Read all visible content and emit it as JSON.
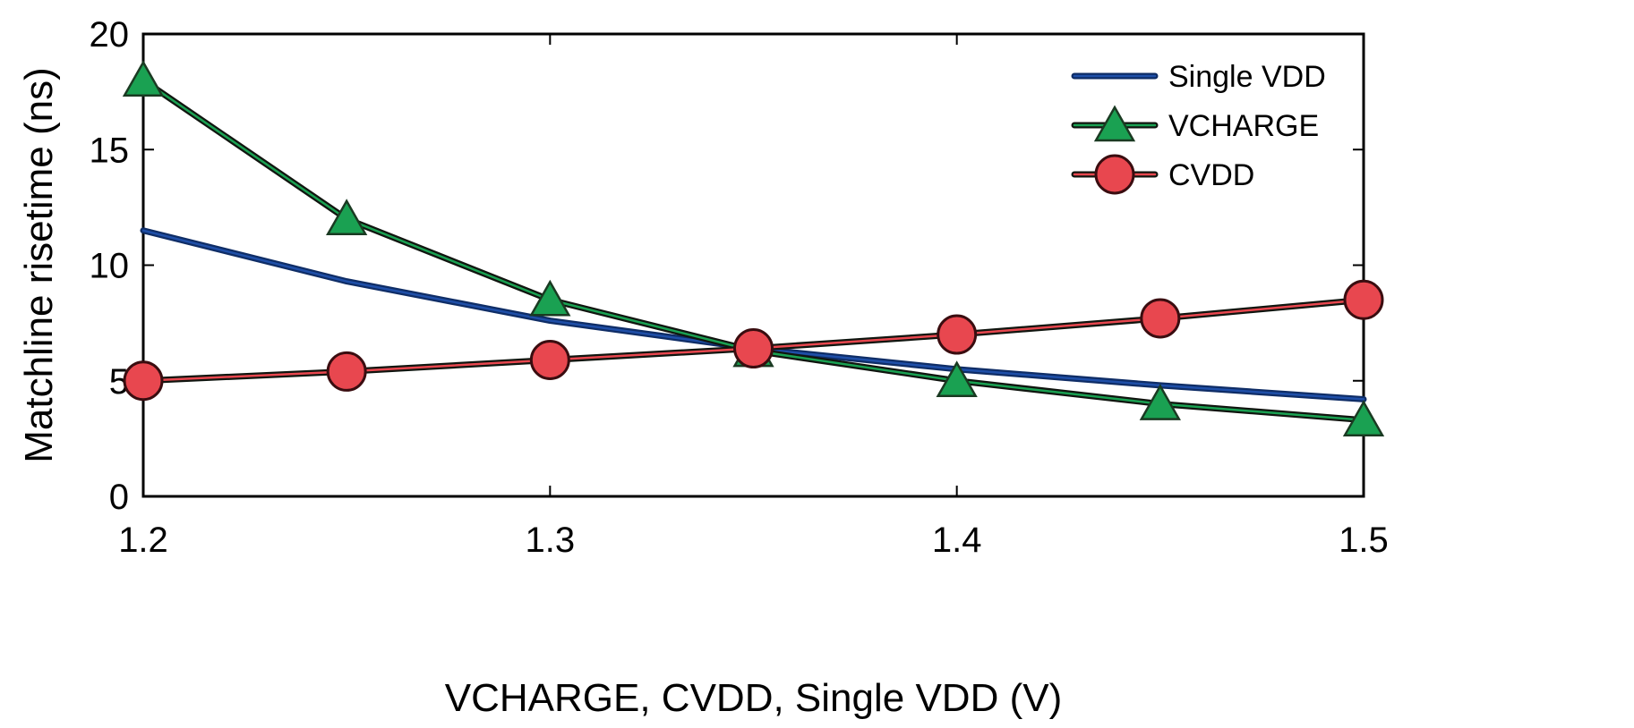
{
  "chart_data": {
    "type": "line",
    "title": "",
    "xlabel": "VCHARGE, CVDD, Single VDD (V)",
    "ylabel": "Matchline risetime (ns)",
    "xlim": [
      1.2,
      1.5
    ],
    "ylim": [
      0,
      20
    ],
    "xticks": [
      1.2,
      1.3,
      1.4,
      1.5
    ],
    "xtick_labels": [
      "1.2",
      "1.3",
      "1.4",
      "1.5"
    ],
    "yticks": [
      0,
      5,
      10,
      15,
      20
    ],
    "ytick_labels": [
      "0",
      "5",
      "10",
      "15",
      "20"
    ],
    "grid": false,
    "legend_position": "top-right",
    "series": [
      {
        "name": "Single VDD",
        "marker": "none",
        "color": "#1f4fa8",
        "x": [
          1.2,
          1.25,
          1.3,
          1.35,
          1.4,
          1.45,
          1.5
        ],
        "y": [
          11.5,
          9.3,
          7.6,
          6.4,
          5.5,
          4.8,
          4.2
        ]
      },
      {
        "name": "VCHARGE",
        "marker": "triangle",
        "color": "#1aa152",
        "x": [
          1.2,
          1.25,
          1.3,
          1.35,
          1.4,
          1.45,
          1.5
        ],
        "y": [
          18.0,
          12.0,
          8.5,
          6.3,
          5.0,
          4.0,
          3.3
        ]
      },
      {
        "name": "CVDD",
        "marker": "circle",
        "color": "#e8474f",
        "x": [
          1.2,
          1.25,
          1.3,
          1.35,
          1.4,
          1.45,
          1.5
        ],
        "y": [
          5.0,
          5.4,
          5.9,
          6.4,
          7.0,
          7.7,
          8.5
        ]
      }
    ]
  }
}
